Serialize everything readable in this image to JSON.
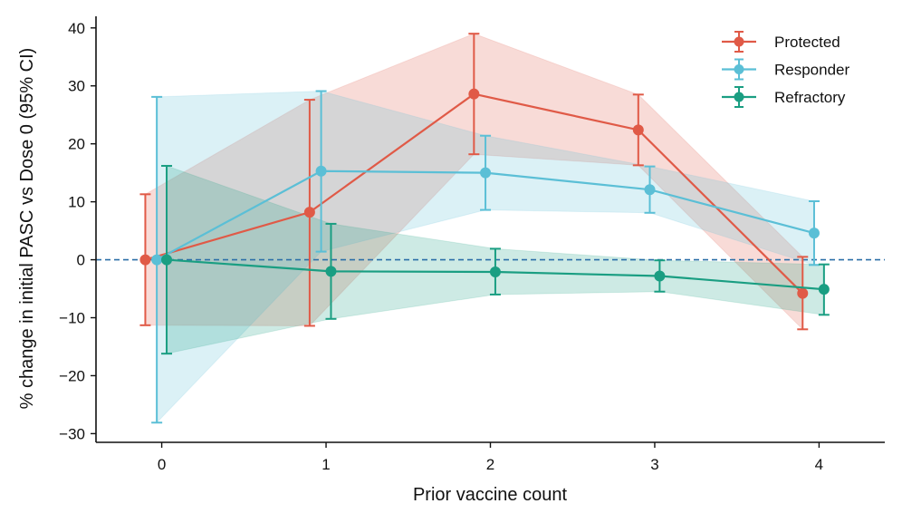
{
  "chart_data": {
    "type": "line",
    "title": "",
    "xlabel": "Prior vaccine count",
    "ylabel": "% change in initial PASC vs Dose 0 (95% CI)",
    "x_ticks": [
      0,
      1,
      2,
      3,
      4
    ],
    "y_ticks": [
      -30,
      -20,
      -10,
      0,
      10,
      20,
      30,
      40
    ],
    "xlim": [
      -0.4,
      4.4
    ],
    "ylim": [
      -31.5,
      42
    ],
    "reference_line": 0,
    "legend_position": "top-right",
    "grid": false,
    "series": [
      {
        "name": "Protected",
        "color": "#e05a47",
        "x": [
          -0.1,
          0.9,
          1.9,
          2.9,
          3.9
        ],
        "values": [
          0,
          8.2,
          28.6,
          22.4,
          -5.8
        ],
        "lower": [
          -11.3,
          -11.4,
          18.2,
          16.3,
          -12.0
        ],
        "upper": [
          11.3,
          27.6,
          39.0,
          28.5,
          0.5
        ]
      },
      {
        "name": "Responder",
        "color": "#5bbfd6",
        "x": [
          -0.03,
          0.97,
          1.97,
          2.97,
          3.97
        ],
        "values": [
          0,
          15.3,
          15.0,
          12.1,
          4.6
        ],
        "lower": [
          -28.1,
          1.4,
          8.6,
          8.1,
          -0.9
        ],
        "upper": [
          28.1,
          29.1,
          21.4,
          16.1,
          10.1
        ]
      },
      {
        "name": "Refractory",
        "color": "#1a9e82",
        "x": [
          0.03,
          1.03,
          2.03,
          3.03,
          4.03
        ],
        "values": [
          0,
          -2.0,
          -2.1,
          -2.8,
          -5.1
        ],
        "lower": [
          -16.2,
          -10.2,
          -6.0,
          -5.5,
          -9.5
        ],
        "upper": [
          16.2,
          6.2,
          1.9,
          -0.1,
          -0.8
        ]
      }
    ]
  }
}
